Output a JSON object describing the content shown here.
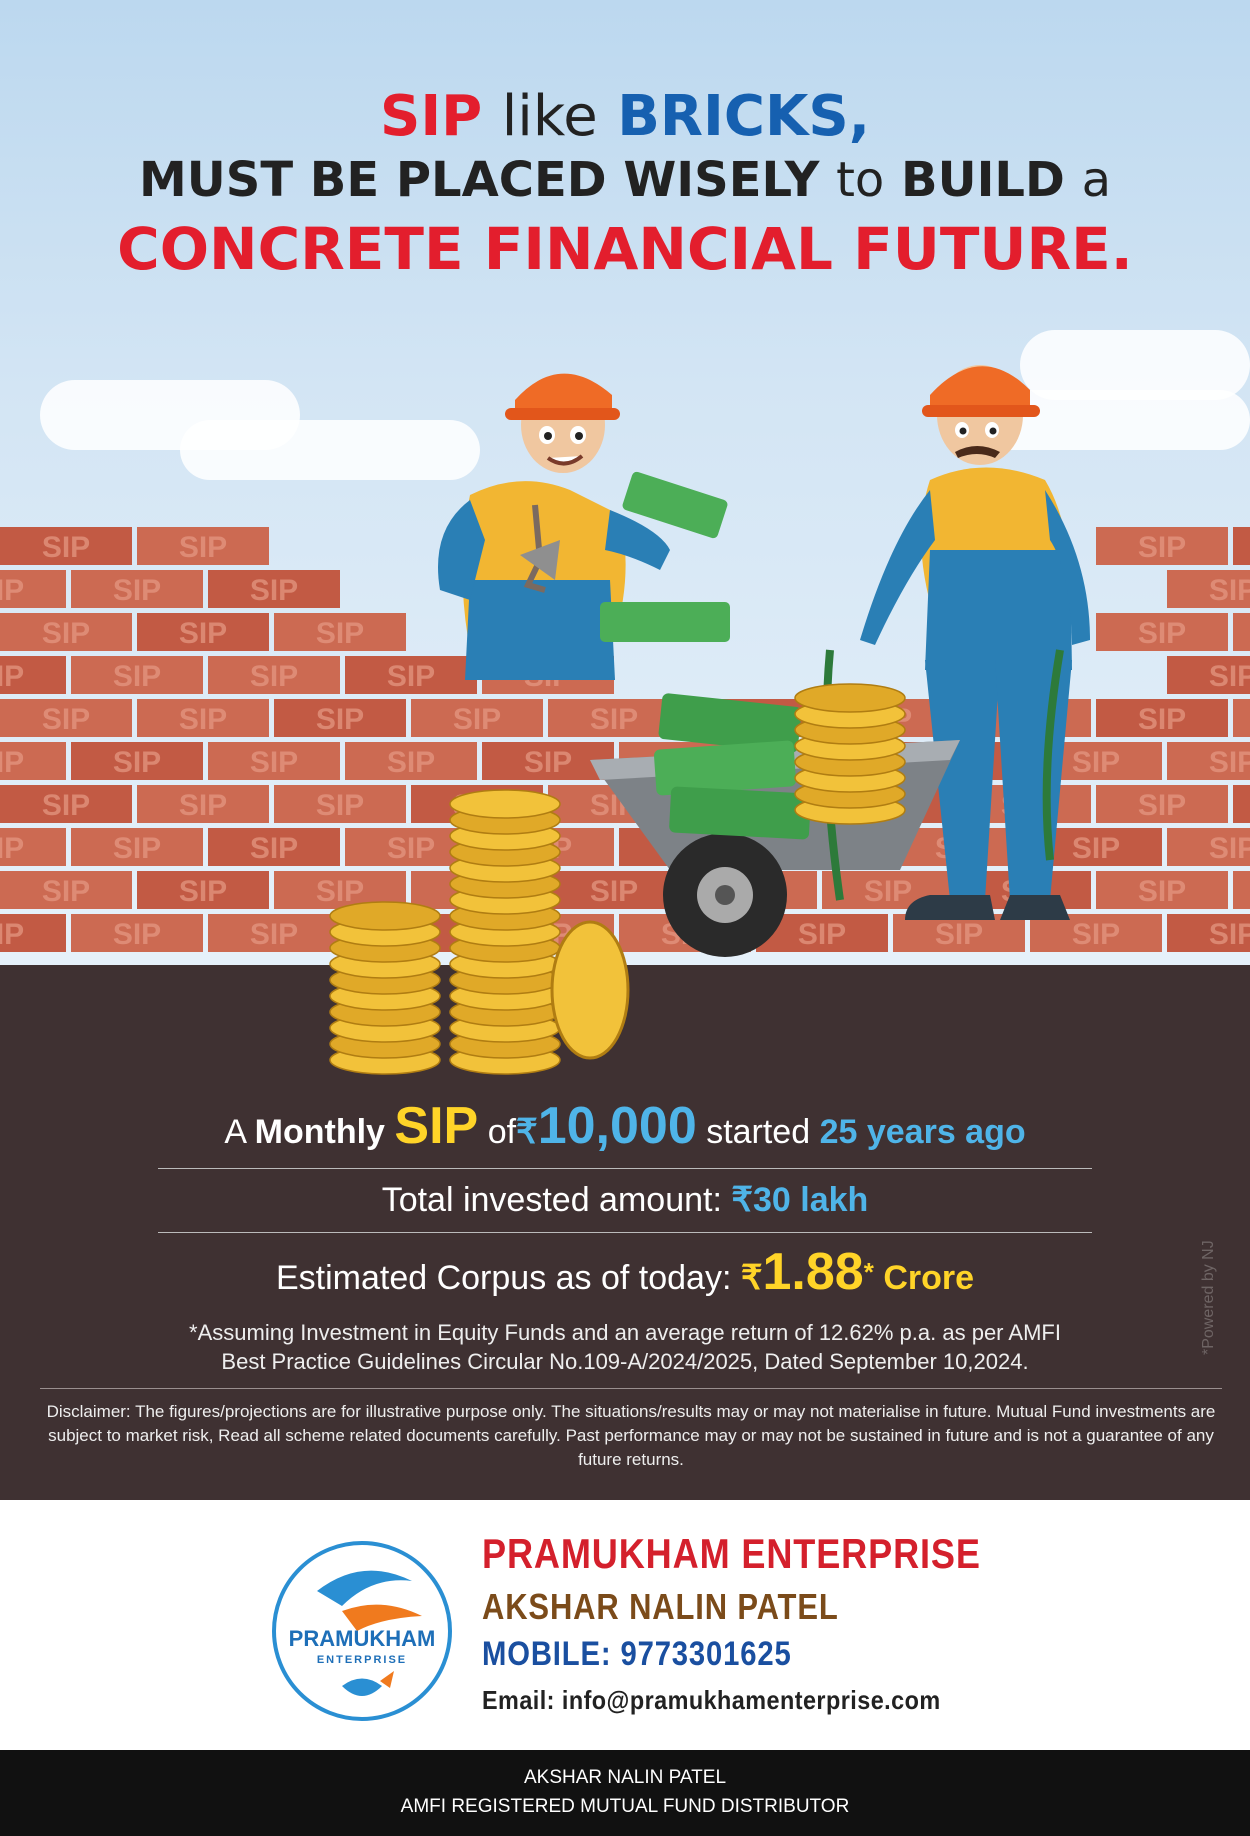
{
  "headline": {
    "l1_sip": "SIP",
    "l1_like": "like",
    "l1_bricks": "BRICKS,",
    "l2_must": "MUST BE PLACED WISELY",
    "l2_to": "to",
    "l2_build": "BUILD",
    "l2_a": "a",
    "l3": "CONCRETE FINANCIAL FUTURE."
  },
  "brick_text": "SIP",
  "sip": {
    "a": "A",
    "monthly": "Monthly",
    "sip": "SIP",
    "of": "of",
    "rupee": "₹",
    "amount": "10,000",
    "started": "started",
    "years": "25 years ago"
  },
  "invested": {
    "label": "Total invested amount:",
    "value": "₹30 lakh"
  },
  "corpus": {
    "label": "Estimated Corpus as of today:",
    "rupee": "₹",
    "value": "1.88",
    "star": "*",
    "unit": "Crore"
  },
  "assumption": {
    "line1": "*Assuming Investment in Equity Funds and an average return of 12.62% p.a. as per AMFI",
    "line2": "Best Practice  Guidelines Circular No.109-A/2024/2025, Dated September 10,2024."
  },
  "disclaimer": "Disclaimer: The figures/projections are for illustrative purpose only. The situations/results may or may not materialise in future. Mutual Fund investments are subject to market risk, Read all scheme related documents carefully. Past performance may or may not be sustained in future and is not a guarantee of any future returns.",
  "powered_by": "*Powered by NJ",
  "contact": {
    "company": "PRAMUKHAM ENTERPRISE",
    "person": "AKSHAR NALIN PATEL",
    "mobile": "MOBILE: 9773301625",
    "email": "Email: info@pramukhamenterprise.com",
    "logo_name": "PRAMUKHAM",
    "logo_sub": "ENTERPRISE"
  },
  "footer": {
    "line1": "AKSHAR NALIN PATEL",
    "line2": "AMFI REGISTERED MUTUAL FUND DISTRIBUTOR"
  },
  "colors": {
    "accent_red": "#e31e2d",
    "accent_blue": "#1660b0",
    "ground": "#3f3132",
    "brick": "#c4604a",
    "highlight_yellow": "#ffd428",
    "highlight_blue": "#4fb4e8"
  }
}
